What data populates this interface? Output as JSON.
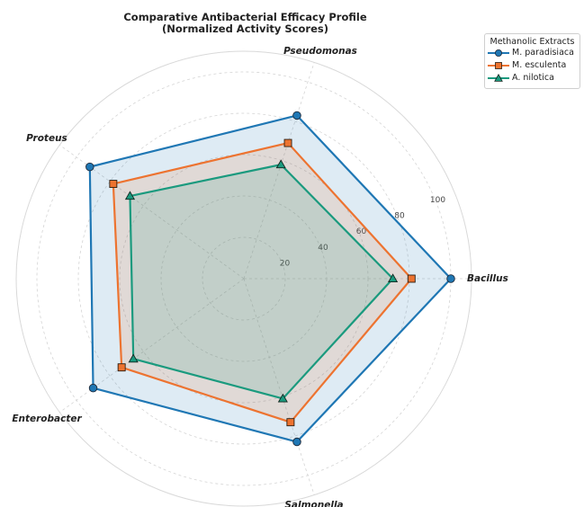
{
  "chart_data": {
    "type": "radar",
    "title": "Comparative Antibacterial Efficacy Profile",
    "subtitle": "(Normalized Activity Scores)",
    "axes": [
      "Bacillus",
      "Pseudomonas",
      "Proteus",
      "Enterobacter",
      "Salmonella"
    ],
    "r_ticks": [
      20,
      40,
      60,
      80,
      100
    ],
    "r_max": 110,
    "grid": true,
    "legend": {
      "title": "Methanolic Extracts",
      "placement": "upper-right outside"
    },
    "series": [
      {
        "name": "M. paradisiaca",
        "color": "#1f77b4",
        "marker": "circle",
        "values": [
          100,
          83,
          92,
          90,
          83
        ]
      },
      {
        "name": "M. esculenta",
        "color": "#ed7330",
        "marker": "square",
        "values": [
          81,
          69,
          78,
          73,
          73
        ]
      },
      {
        "name": "A. nilotica",
        "color": "#1a9a7e",
        "marker": "triangle",
        "values": [
          72,
          58,
          68,
          66,
          61
        ]
      }
    ]
  }
}
